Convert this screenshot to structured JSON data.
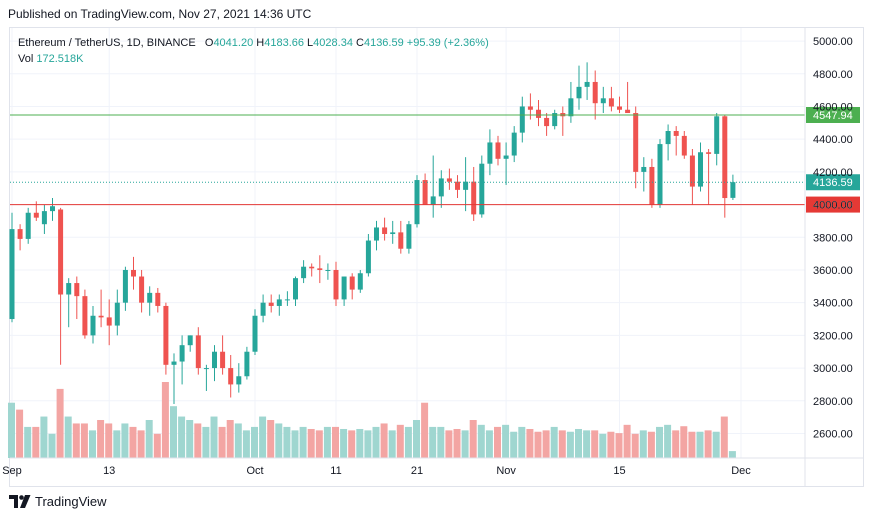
{
  "published": "Published on TradingView.com, Nov 27, 2021 14:36 UTC",
  "legend": {
    "symbol": "Ethereum / TetherUS, 1D, BINANCE",
    "o_label": "O",
    "o": "4041.20",
    "h_label": "H",
    "h": "4183.66",
    "l_label": "L",
    "l": "4028.34",
    "c_label": "C",
    "c": "4136.59",
    "change": "+95.39 (+2.36%)",
    "vol_label": "Vol",
    "vol": "172.518K"
  },
  "colors": {
    "up": "#26a69a",
    "down": "#ef5350",
    "up_vol": "#9fd6d0",
    "down_vol": "#f3a5a3",
    "resistance": "#4caf50",
    "support": "#e53935"
  },
  "logo_text": "TradingView",
  "chart_data": {
    "type": "candlestick",
    "title": "Ethereum / TetherUS, 1D, BINANCE",
    "ylim": [
      2450,
      5080
    ],
    "y_ticks": [
      "5000.00",
      "4800.00",
      "4600.00",
      "4400.00",
      "4200.00",
      "4000.00",
      "3800.00",
      "3600.00",
      "3400.00",
      "3200.00",
      "3000.00",
      "2800.00",
      "2600.00"
    ],
    "x_ticks": [
      {
        "label": "Sep",
        "index": 0
      },
      {
        "label": "13",
        "index": 12
      },
      {
        "label": "Oct",
        "index": 30
      },
      {
        "label": "11",
        "index": 40
      },
      {
        "label": "21",
        "index": 50
      },
      {
        "label": "Nov",
        "index": 61
      },
      {
        "label": "15",
        "index": 75
      },
      {
        "label": "Dec",
        "index": 90
      }
    ],
    "levels": [
      {
        "name": "resistance",
        "value": 4547.94,
        "label": "4547.94",
        "color": "#4caf50"
      },
      {
        "name": "support",
        "value": 4000.0,
        "label": "4000.00",
        "color": "#e53935"
      }
    ],
    "last_price": {
      "value": 4136.59,
      "label": "4136.59"
    },
    "candles": [
      [
        3300,
        3950,
        3280,
        3850
      ],
      [
        3850,
        3880,
        3720,
        3790
      ],
      [
        3790,
        3980,
        3760,
        3950
      ],
      [
        3950,
        4020,
        3900,
        3920
      ],
      [
        3880,
        4000,
        3820,
        3960
      ],
      [
        3960,
        4040,
        3900,
        3990
      ],
      [
        3970,
        3980,
        3020,
        3450
      ],
      [
        3450,
        3550,
        3250,
        3520
      ],
      [
        3520,
        3560,
        3300,
        3440
      ],
      [
        3440,
        3480,
        3180,
        3200
      ],
      [
        3200,
        3380,
        3150,
        3320
      ],
      [
        3320,
        3480,
        3250,
        3310
      ],
      [
        3310,
        3420,
        3140,
        3260
      ],
      [
        3260,
        3480,
        3200,
        3400
      ],
      [
        3400,
        3620,
        3350,
        3600
      ],
      [
        3600,
        3680,
        3480,
        3560
      ],
      [
        3560,
        3600,
        3340,
        3400
      ],
      [
        3400,
        3500,
        3320,
        3460
      ],
      [
        3460,
        3490,
        3340,
        3380
      ],
      [
        3380,
        3400,
        2960,
        3020
      ],
      [
        3020,
        3090,
        2780,
        3040
      ],
      [
        3040,
        3200,
        2900,
        3140
      ],
      [
        3140,
        3200,
        3100,
        3200
      ],
      [
        3200,
        3250,
        2960,
        3000
      ],
      [
        3000,
        3020,
        2860,
        3000
      ],
      [
        3000,
        3140,
        2920,
        3100
      ],
      [
        3100,
        3200,
        2960,
        3000
      ],
      [
        3000,
        3080,
        2820,
        2900
      ],
      [
        2900,
        3030,
        2850,
        2950
      ],
      [
        2950,
        3130,
        2930,
        3100
      ],
      [
        3100,
        3360,
        3080,
        3320
      ],
      [
        3320,
        3450,
        3280,
        3400
      ],
      [
        3400,
        3450,
        3340,
        3380
      ],
      [
        3380,
        3450,
        3320,
        3420
      ],
      [
        3420,
        3470,
        3380,
        3420
      ],
      [
        3420,
        3560,
        3380,
        3550
      ],
      [
        3550,
        3660,
        3520,
        3620
      ],
      [
        3620,
        3640,
        3560,
        3610
      ],
      [
        3610,
        3690,
        3520,
        3600
      ],
      [
        3600,
        3640,
        3540,
        3600
      ],
      [
        3600,
        3650,
        3380,
        3420
      ],
      [
        3420,
        3560,
        3380,
        3560
      ],
      [
        3560,
        3580,
        3420,
        3480
      ],
      [
        3480,
        3600,
        3460,
        3580
      ],
      [
        3580,
        3820,
        3560,
        3780
      ],
      [
        3780,
        3900,
        3720,
        3860
      ],
      [
        3860,
        3920,
        3780,
        3820
      ],
      [
        3820,
        3900,
        3760,
        3830
      ],
      [
        3830,
        3900,
        3700,
        3730
      ],
      [
        3730,
        3900,
        3700,
        3880
      ],
      [
        3880,
        4180,
        3860,
        4150
      ],
      [
        4150,
        4190,
        4020,
        4000
      ],
      [
        4000,
        4300,
        3920,
        4050
      ],
      [
        4050,
        4210,
        3980,
        4160
      ],
      [
        4160,
        4220,
        4090,
        4140
      ],
      [
        4140,
        4180,
        4040,
        4090
      ],
      [
        4090,
        4290,
        3960,
        4140
      ],
      [
        4140,
        4230,
        3900,
        3940
      ],
      [
        3940,
        4300,
        3920,
        4250
      ],
      [
        4250,
        4460,
        4180,
        4380
      ],
      [
        4380,
        4420,
        4240,
        4280
      ],
      [
        4280,
        4380,
        4120,
        4300
      ],
      [
        4300,
        4480,
        4260,
        4440
      ],
      [
        4440,
        4660,
        4380,
        4600
      ],
      [
        4600,
        4680,
        4520,
        4580
      ],
      [
        4580,
        4640,
        4480,
        4530
      ],
      [
        4530,
        4560,
        4420,
        4480
      ],
      [
        4480,
        4580,
        4460,
        4560
      ],
      [
        4560,
        4600,
        4420,
        4540
      ],
      [
        4540,
        4750,
        4500,
        4650
      ],
      [
        4650,
        4850,
        4580,
        4720
      ],
      [
        4720,
        4870,
        4640,
        4750
      ],
      [
        4750,
        4820,
        4520,
        4620
      ],
      [
        4620,
        4720,
        4560,
        4650
      ],
      [
        4650,
        4720,
        4570,
        4600
      ],
      [
        4600,
        4660,
        4560,
        4580
      ],
      [
        4580,
        4750,
        4560,
        4560
      ],
      [
        4560,
        4600,
        4100,
        4200
      ],
      [
        4200,
        4290,
        4080,
        4230
      ],
      [
        4230,
        4280,
        3980,
        4000
      ],
      [
        4000,
        4400,
        3980,
        4370
      ],
      [
        4370,
        4490,
        4270,
        4450
      ],
      [
        4450,
        4480,
        4300,
        4420
      ],
      [
        4420,
        4450,
        4280,
        4300
      ],
      [
        4300,
        4340,
        4000,
        4110
      ],
      [
        4110,
        4380,
        4080,
        4320
      ],
      [
        4320,
        4340,
        4000,
        4310
      ],
      [
        4310,
        4560,
        4240,
        4540
      ],
      [
        4540,
        4550,
        3920,
        4040
      ],
      [
        4041,
        4183,
        4028,
        4137
      ]
    ],
    "volumes": [
      80,
      70,
      45,
      45,
      60,
      35,
      100,
      60,
      50,
      50,
      40,
      55,
      50,
      40,
      50,
      45,
      40,
      55,
      35,
      110,
      75,
      60,
      55,
      50,
      45,
      60,
      45,
      55,
      50,
      40,
      45,
      60,
      55,
      50,
      45,
      40,
      45,
      42,
      40,
      45,
      45,
      42,
      40,
      42,
      40,
      45,
      50,
      40,
      48,
      45,
      55,
      80,
      45,
      45,
      40,
      42,
      40,
      55,
      48,
      40,
      45,
      48,
      38,
      45,
      42,
      38,
      40,
      45,
      40,
      38,
      42,
      40,
      40,
      35,
      38,
      36,
      48,
      35,
      40,
      38,
      45,
      48,
      40,
      46,
      38,
      38,
      40,
      38,
      60,
      10
    ]
  }
}
